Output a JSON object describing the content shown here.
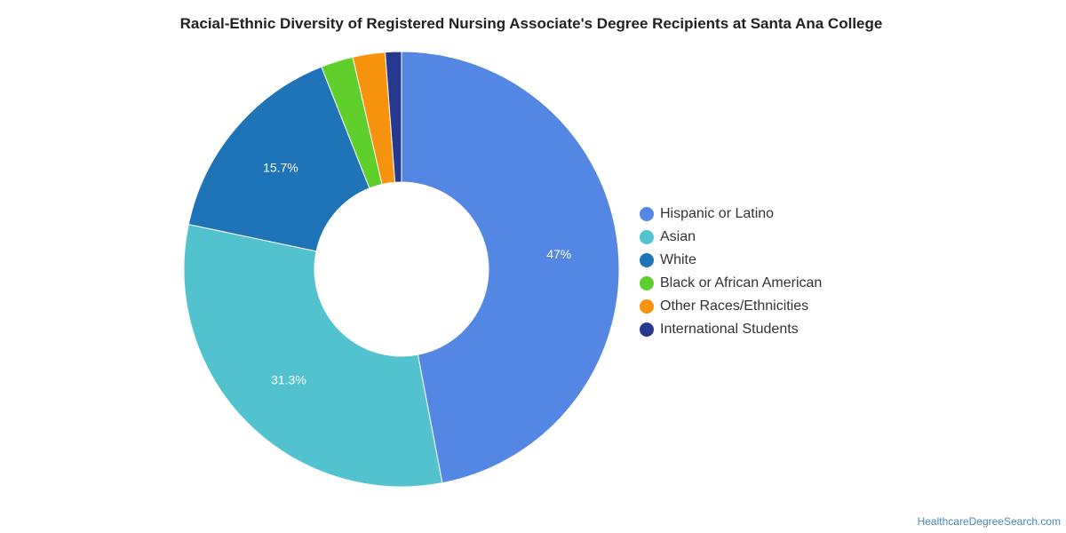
{
  "chart_data": {
    "type": "pie",
    "title": "Racial-Ethnic Diversity of Registered Nursing Associate's Degree Recipients at Santa Ana College",
    "donut": true,
    "legend_position": "right",
    "categories": [
      "Hispanic or Latino",
      "Asian",
      "White",
      "Black or African American",
      "Other Races/Ethnicities",
      "International Students"
    ],
    "values": [
      47,
      31.3,
      15.7,
      2.4,
      2.4,
      1.2
    ],
    "data_labels": [
      "47%",
      "31.3%",
      "15.7%",
      "",
      "",
      ""
    ],
    "colors": [
      "#5486e3",
      "#51c2ce",
      "#1f73b7",
      "#5ecf2b",
      "#f7930c",
      "#27398f"
    ]
  },
  "source": "HealthcareDegreeSearch.com"
}
